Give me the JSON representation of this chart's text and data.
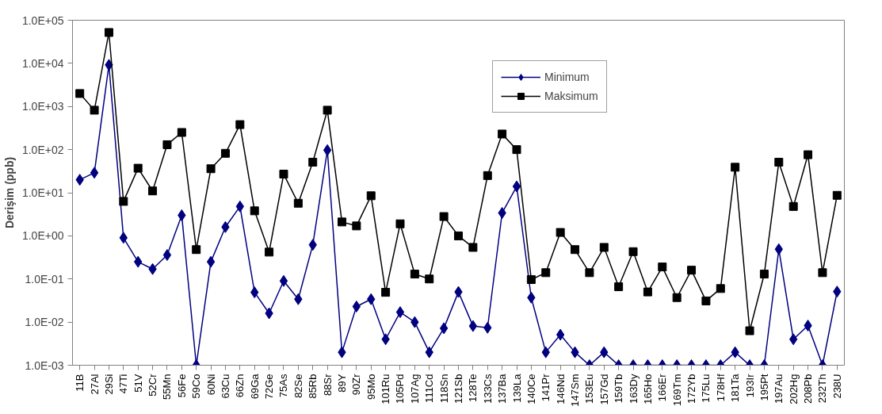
{
  "chart_data": {
    "type": "line",
    "ylabel": "Derişim (ppb)",
    "log": "y",
    "grid": false,
    "legend": "top",
    "categories": [
      "11B",
      "27Al",
      "29Si",
      "47Ti",
      "51V",
      "52Cr",
      "55Mn",
      "56Fe",
      "59Co",
      "60Ni",
      "63Cu",
      "66Zn",
      "69Ga",
      "72Ge",
      "75As",
      "82Se",
      "85Rb",
      "88Sr",
      "89Y",
      "90Zr",
      "95Mo",
      "101Ru",
      "105Pd",
      "107Ag",
      "111Cd",
      "118Sn",
      "121Sb",
      "128Te",
      "133Cs",
      "137Ba",
      "139La",
      "140Ce",
      "141Pr",
      "146Nd",
      "147Sm",
      "153Eu",
      "157Gd",
      "159Tb",
      "163Dy",
      "165Ho",
      "166Er",
      "169Tm",
      "172Yb",
      "175Lu",
      "178Hf",
      "181Ta",
      "193Ir",
      "195Pt",
      "197Au",
      "202Hg",
      "208Pb",
      "232Th",
      "238U"
    ],
    "ylim": [
      0.001,
      100000
    ],
    "yticks": [
      {
        "value": 0.001,
        "label": "1.0E-03"
      },
      {
        "value": 0.01,
        "label": "1.0E-02"
      },
      {
        "value": 0.1,
        "label": "1.0E-01"
      },
      {
        "value": 1,
        "label": "1.0E+00"
      },
      {
        "value": 10,
        "label": "1.0E+01"
      },
      {
        "value": 100,
        "label": "1.0E+02"
      },
      {
        "value": 1000,
        "label": "1.0E+03"
      },
      {
        "value": 10000,
        "label": "1.0E+04"
      },
      {
        "value": 100000,
        "label": "1.0E+05"
      }
    ],
    "series": [
      {
        "name": "Minimum",
        "color": "#000080",
        "marker": "diamond",
        "values": [
          20,
          29,
          9200,
          0.9,
          0.25,
          0.17,
          0.36,
          3,
          0.001,
          0.25,
          1.6,
          4.8,
          0.049,
          0.016,
          0.09,
          0.034,
          0.62,
          97,
          0.002,
          0.023,
          0.034,
          0.004,
          0.017,
          0.01,
          0.002,
          0.0072,
          0.05,
          0.0081,
          0.0074,
          3.4,
          14,
          0.037,
          0.002,
          0.0051,
          0.002,
          0.001,
          0.002,
          0.001,
          0.001,
          0.001,
          0.001,
          0.001,
          0.001,
          0.001,
          0.001,
          0.002,
          0.001,
          0.001,
          0.49,
          0.004,
          0.0083,
          0.001,
          0.051
        ]
      },
      {
        "name": "Maksimum",
        "color": "#000000",
        "marker": "square",
        "values": [
          2000,
          820,
          52000,
          6.3,
          37,
          11,
          130,
          250,
          0.48,
          36,
          82,
          380,
          3.8,
          0.42,
          27,
          5.7,
          51,
          820,
          2.1,
          1.7,
          8.5,
          0.049,
          1.9,
          0.13,
          0.1,
          2.8,
          1.0,
          0.54,
          25,
          230,
          100,
          0.097,
          0.14,
          1.2,
          0.48,
          0.14,
          0.54,
          0.066,
          0.43,
          0.05,
          0.19,
          0.037,
          0.16,
          0.031,
          0.06,
          39,
          0.0063,
          0.13,
          51,
          4.8,
          76,
          0.14,
          8.7
        ]
      }
    ]
  }
}
